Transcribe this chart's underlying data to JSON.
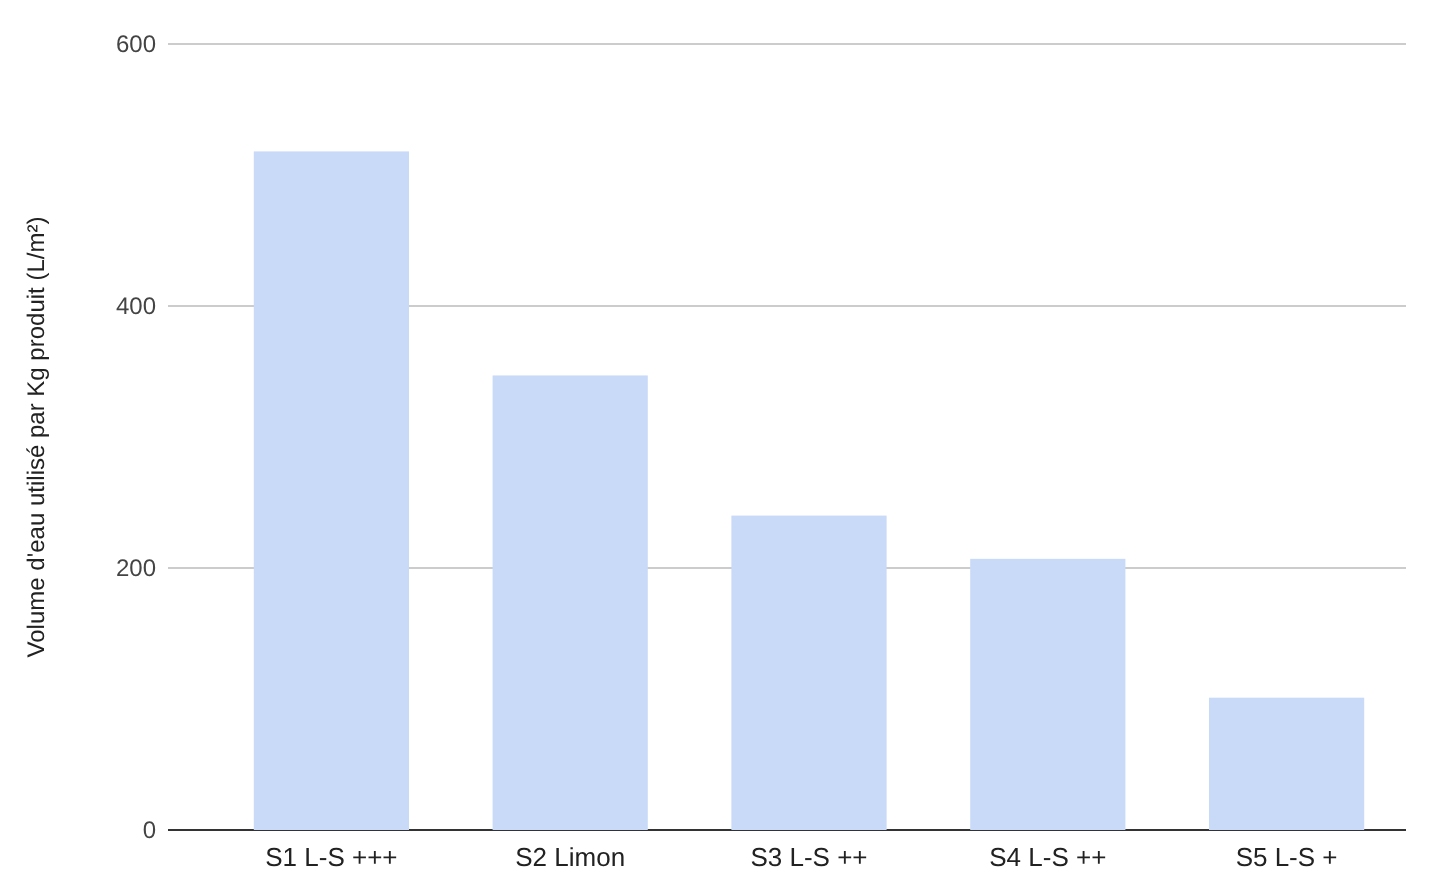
{
  "chart_data": {
    "type": "bar",
    "ylabel": "Volume d'eau utilisé par Kg produit (L/m²)",
    "categories": [
      "S1  L-S +++",
      "S2  Limon",
      "S3  L-S ++",
      "S4  L-S ++",
      "S5  L-S +"
    ],
    "values": [
      518,
      347,
      240,
      207,
      101
    ],
    "color": "#c9daf8",
    "ylim": [
      0,
      600
    ],
    "yticks": [
      0,
      200,
      400,
      600
    ],
    "grid": "y"
  }
}
